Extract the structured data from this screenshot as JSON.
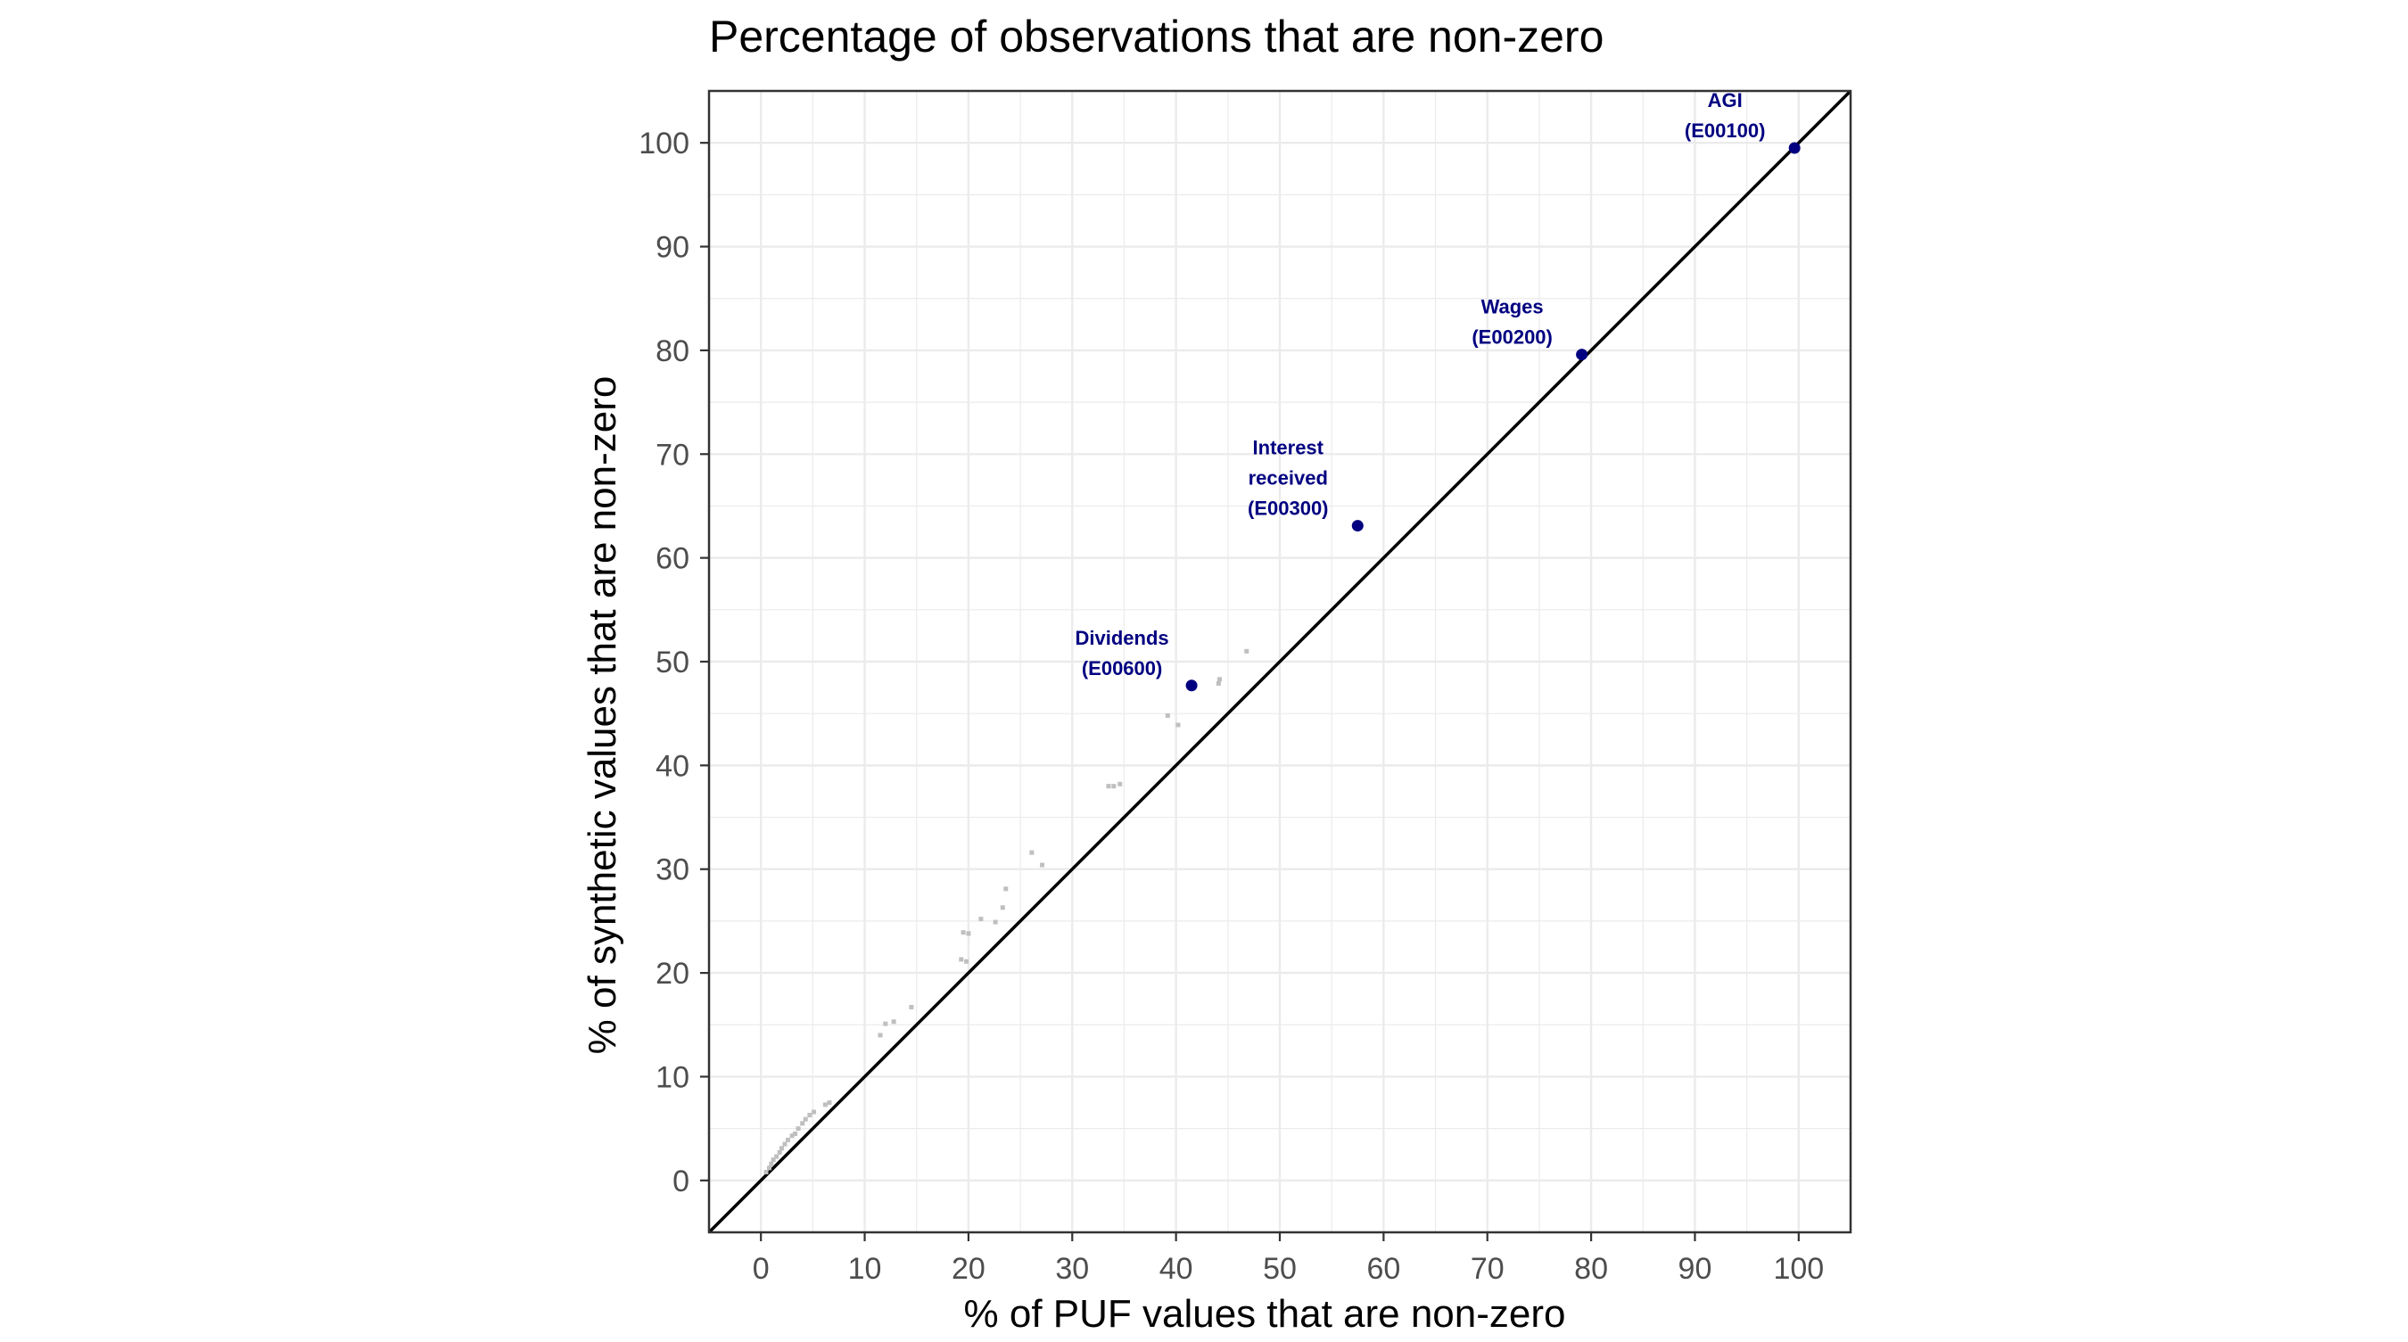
{
  "chart_data": {
    "type": "scatter",
    "title": "Percentage of observations that are non-zero",
    "xlabel": "% of PUF values that are non-zero",
    "ylabel": "% of synthetic values that are non-zero",
    "xlim": [
      -5,
      105
    ],
    "ylim": [
      -5,
      105
    ],
    "xticks": [
      0,
      10,
      20,
      30,
      40,
      50,
      60,
      70,
      80,
      90,
      100
    ],
    "yticks": [
      0,
      10,
      20,
      30,
      40,
      50,
      60,
      70,
      80,
      90,
      100
    ],
    "grid": true,
    "reference_line": {
      "slope": 1,
      "intercept": 0
    },
    "colors": {
      "highlight": "#000080",
      "other": "#bfbfbf",
      "reference_line": "#000000",
      "grid": "#ebebeb",
      "panel_border": "#333333"
    },
    "highlighted_points": [
      {
        "x": 99.6,
        "y": 99.5,
        "label_lines": [
          "AGI",
          "(E00100)"
        ]
      },
      {
        "x": 79.1,
        "y": 79.6,
        "label_lines": [
          "Wages",
          "(E00200)"
        ]
      },
      {
        "x": 57.5,
        "y": 63.1,
        "label_lines": [
          "Interest",
          "received",
          "(E00300)"
        ]
      },
      {
        "x": 41.5,
        "y": 47.7,
        "label_lines": [
          "Dividends",
          "(E00600)"
        ]
      }
    ],
    "other_points": [
      {
        "x": 0.5,
        "y": 0.8
      },
      {
        "x": 0.8,
        "y": 1.2
      },
      {
        "x": 1.0,
        "y": 1.6
      },
      {
        "x": 1.2,
        "y": 2.0
      },
      {
        "x": 1.5,
        "y": 2.3
      },
      {
        "x": 1.8,
        "y": 2.7
      },
      {
        "x": 2.0,
        "y": 3.1
      },
      {
        "x": 2.3,
        "y": 3.5
      },
      {
        "x": 2.6,
        "y": 3.9
      },
      {
        "x": 3.0,
        "y": 4.3
      },
      {
        "x": 3.3,
        "y": 4.5
      },
      {
        "x": 3.6,
        "y": 5.0
      },
      {
        "x": 4.0,
        "y": 5.5
      },
      {
        "x": 4.3,
        "y": 5.9
      },
      {
        "x": 4.7,
        "y": 6.3
      },
      {
        "x": 5.1,
        "y": 6.6
      },
      {
        "x": 6.2,
        "y": 7.3
      },
      {
        "x": 6.6,
        "y": 7.5
      },
      {
        "x": 11.5,
        "y": 14.0
      },
      {
        "x": 12.0,
        "y": 15.1
      },
      {
        "x": 12.8,
        "y": 15.3
      },
      {
        "x": 14.5,
        "y": 16.7
      },
      {
        "x": 19.3,
        "y": 21.3
      },
      {
        "x": 19.8,
        "y": 21.1
      },
      {
        "x": 19.5,
        "y": 23.9
      },
      {
        "x": 20.0,
        "y": 23.8
      },
      {
        "x": 21.2,
        "y": 25.2
      },
      {
        "x": 22.6,
        "y": 24.9
      },
      {
        "x": 23.3,
        "y": 26.3
      },
      {
        "x": 23.6,
        "y": 28.1
      },
      {
        "x": 26.1,
        "y": 31.6
      },
      {
        "x": 27.1,
        "y": 30.4
      },
      {
        "x": 33.5,
        "y": 38.0
      },
      {
        "x": 34.0,
        "y": 38.0
      },
      {
        "x": 34.6,
        "y": 38.2
      },
      {
        "x": 39.2,
        "y": 44.8
      },
      {
        "x": 40.2,
        "y": 43.9
      },
      {
        "x": 44.1,
        "y": 47.9
      },
      {
        "x": 44.2,
        "y": 48.3
      },
      {
        "x": 46.8,
        "y": 51.0
      }
    ]
  }
}
